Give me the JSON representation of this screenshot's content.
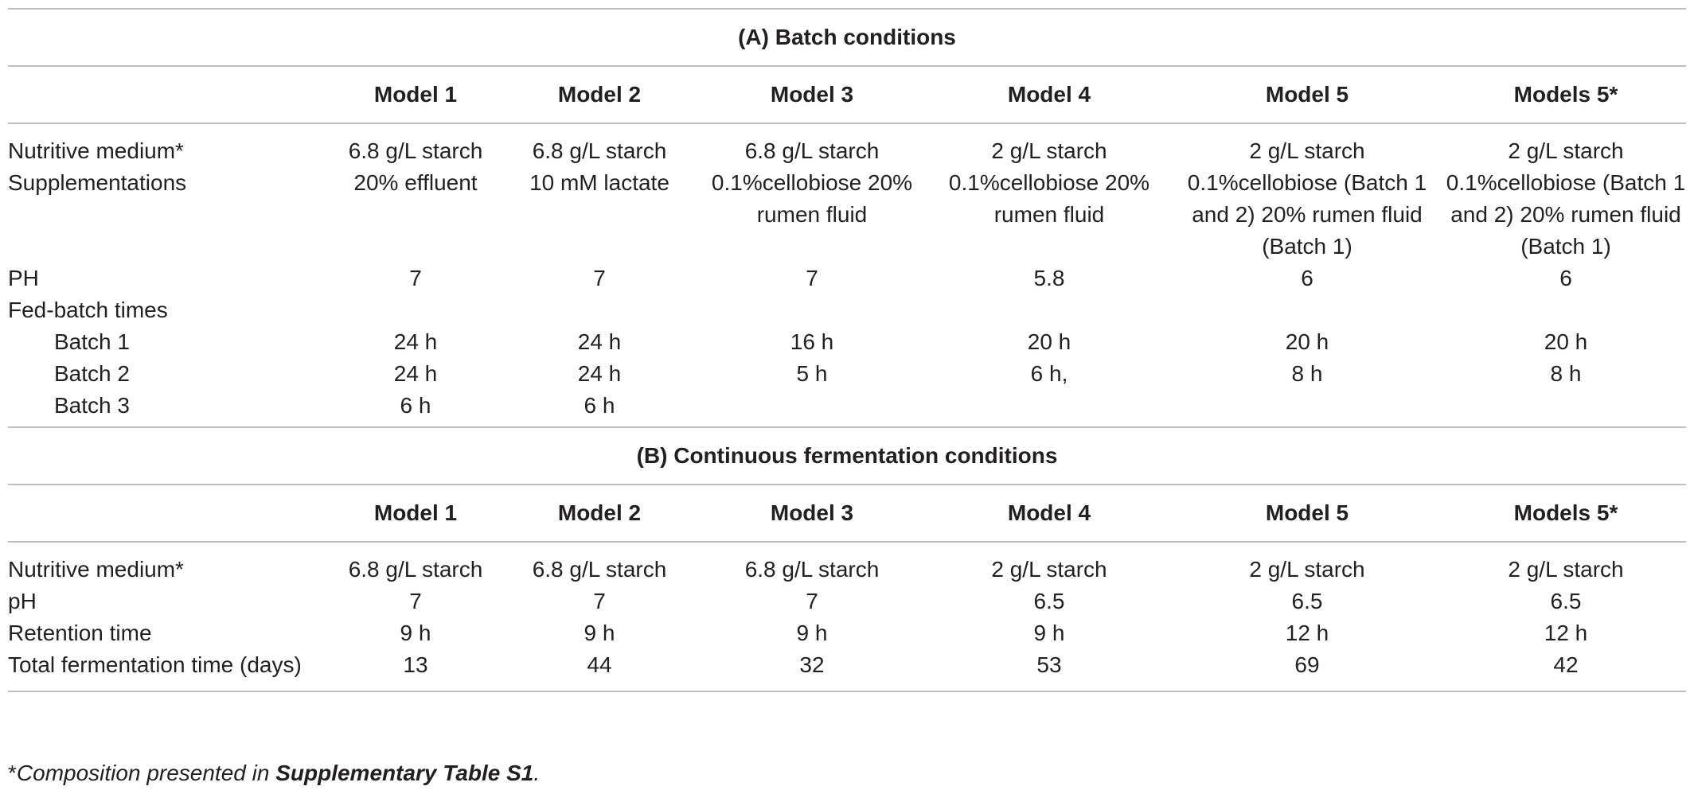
{
  "section_a": {
    "title": "(A) Batch conditions",
    "headers": [
      "",
      "Model 1",
      "Model 2",
      "Model 3",
      "Model 4",
      "Model 5",
      "Models 5*"
    ],
    "rows": [
      {
        "label": "Nutritive medium*",
        "values": [
          "6.8 g/L starch",
          "6.8 g/L starch",
          "6.8 g/L starch",
          "2 g/L starch",
          "2 g/L starch",
          "2 g/L starch"
        ]
      },
      {
        "label": "Supplementations",
        "values": [
          "20% effluent",
          "10 mM lactate",
          "0.1%cellobiose 20% rumen fluid",
          "0.1%cellobiose 20% rumen fluid",
          "0.1%cellobiose (Batch 1 and 2) 20% rumen fluid (Batch 1)",
          "0.1%cellobiose (Batch 1 and 2) 20% rumen fluid (Batch 1)"
        ]
      },
      {
        "label": "PH",
        "values": [
          "7",
          "7",
          "7",
          "5.8",
          "6",
          "6"
        ]
      },
      {
        "label": "Fed-batch times",
        "values": [
          "",
          "",
          "",
          "",
          "",
          ""
        ]
      },
      {
        "label": "Batch 1",
        "values": [
          "24 h",
          "24 h",
          "16 h",
          "20 h",
          "20 h",
          "20 h"
        ]
      },
      {
        "label": "Batch 2",
        "values": [
          "24 h",
          "24 h",
          "5 h",
          "6 h,",
          "8 h",
          "8 h"
        ]
      },
      {
        "label": "Batch 3",
        "values": [
          "6 h",
          "6 h",
          "",
          "",
          "",
          ""
        ]
      }
    ]
  },
  "section_b": {
    "title": "(B) Continuous fermentation conditions",
    "headers": [
      "",
      "Model 1",
      "Model 2",
      "Model 3",
      "Model 4",
      "Model 5",
      "Models 5*"
    ],
    "rows": [
      {
        "label": "Nutritive medium*",
        "values": [
          "6.8 g/L starch",
          "6.8 g/L starch",
          "6.8 g/L starch",
          "2 g/L starch",
          "2 g/L starch",
          "2 g/L starch"
        ]
      },
      {
        "label": "pH",
        "values": [
          "7",
          "7",
          "7",
          "6.5",
          "6.5",
          "6.5"
        ]
      },
      {
        "label": "Retention time",
        "values": [
          "9 h",
          "9 h",
          "9 h",
          "9 h",
          "12 h",
          "12 h"
        ]
      },
      {
        "label": "Total fermentation time (days)",
        "values": [
          "13",
          "44",
          "32",
          "53",
          "69",
          "42"
        ]
      }
    ]
  },
  "footnote": {
    "marker": "*",
    "text": "Composition presented in ",
    "ref": "Supplementary Table S1",
    "end": "."
  }
}
